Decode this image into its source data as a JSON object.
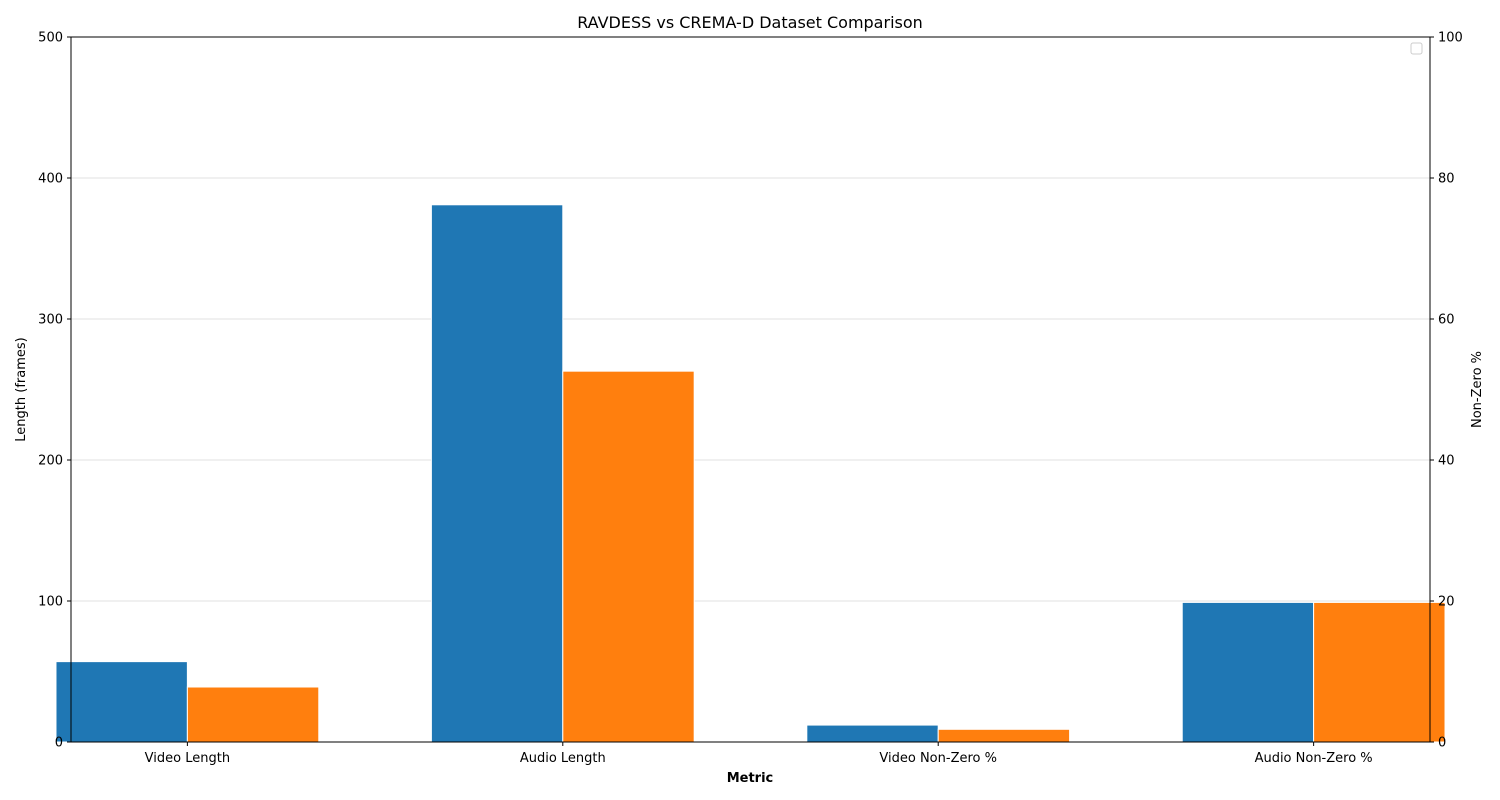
{
  "chart_data": {
    "type": "bar",
    "title": "RAVDESS vs CREMA-D Dataset Comparison",
    "xlabel": "Metric",
    "ylabel": "Length (frames)",
    "ylabel_right": "Non-Zero %",
    "categories": [
      "Video Length",
      "Audio Length",
      "Video Non-Zero %",
      "Audio Non-Zero %"
    ],
    "ylim": [
      0,
      500
    ],
    "ylim_right": [
      0,
      100
    ],
    "yticks": [
      "0",
      "100",
      "200",
      "300",
      "400",
      "500"
    ],
    "yticks_right": [
      "0",
      "20",
      "40",
      "60",
      "80",
      "100"
    ],
    "grid": "horizontal",
    "legend": "top-right",
    "series": [
      {
        "color": "#1f77b4",
        "values": [
          57,
          381,
          12,
          99
        ]
      },
      {
        "color": "#ff7f0e",
        "values": [
          39,
          263,
          9,
          99
        ]
      }
    ]
  }
}
